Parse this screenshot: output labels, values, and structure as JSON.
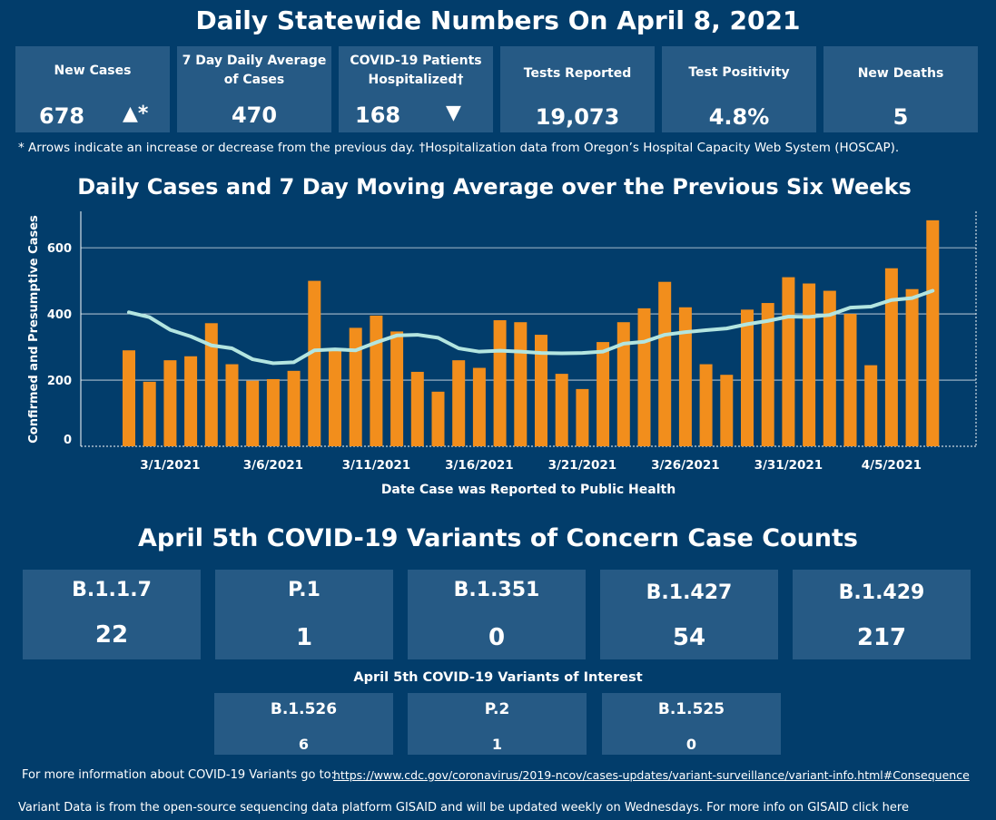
{
  "header": {
    "title": "Daily Statewide Numbers On April 8, 2021"
  },
  "kpis": [
    {
      "label_lines": [
        "New Cases"
      ],
      "value": "678",
      "indicator": "▲*"
    },
    {
      "label_lines": [
        "7 Day Daily Average",
        "of Cases"
      ],
      "value": "470",
      "indicator": ""
    },
    {
      "label_lines": [
        "COVID-19 Patients",
        "Hospitalized†"
      ],
      "value": "168",
      "indicator": "▼"
    },
    {
      "label_lines": [
        "Tests Reported"
      ],
      "value": "19,073",
      "indicator": ""
    },
    {
      "label_lines": [
        "Test Positivity"
      ],
      "value": "4.8%",
      "indicator": ""
    },
    {
      "label_lines": [
        "New Deaths"
      ],
      "value": "5",
      "indicator": ""
    }
  ],
  "footnote": "* Arrows indicate an increase or decrease from the previous day. †Hospitalization data from Oregon’s Hospital Capacity Web System (HOSCAP).",
  "chart_title": "Daily Cases and 7 Day Moving Average over the Previous Six Weeks",
  "chart_data": {
    "type": "bar",
    "title": "Daily Cases and 7 Day Moving Average over the Previous Six Weeks",
    "xlabel": "Date Case was Reported to Public Health",
    "ylabel": "Confirmed and Presumptive Cases",
    "ylim": [
      0,
      710
    ],
    "yticks": [
      0,
      200,
      400,
      600
    ],
    "grid": true,
    "x_tick_labels": [
      "3/1/2021",
      "3/6/2021",
      "3/11/2021",
      "3/16/2021",
      "3/21/2021",
      "3/26/2021",
      "3/31/2021",
      "4/5/2021"
    ],
    "x_tick_positions": [
      2,
      7,
      12,
      17,
      22,
      27,
      32,
      37
    ],
    "x": [
      "2/27/2021",
      "2/28/2021",
      "3/1/2021",
      "3/2/2021",
      "3/3/2021",
      "3/4/2021",
      "3/5/2021",
      "3/6/2021",
      "3/7/2021",
      "3/8/2021",
      "3/9/2021",
      "3/10/2021",
      "3/11/2021",
      "3/12/2021",
      "3/13/2021",
      "3/14/2021",
      "3/15/2021",
      "3/16/2021",
      "3/17/2021",
      "3/18/2021",
      "3/19/2021",
      "3/20/2021",
      "3/21/2021",
      "3/22/2021",
      "3/23/2021",
      "3/24/2021",
      "3/25/2021",
      "3/26/2021",
      "3/27/2021",
      "3/28/2021",
      "3/29/2021",
      "3/30/2021",
      "3/31/2021",
      "4/1/2021",
      "4/2/2021",
      "4/3/2021",
      "4/4/2021",
      "4/5/2021",
      "4/6/2021",
      "4/7/2021"
    ],
    "series": [
      {
        "kind": "bar",
        "color": "#f28e1c",
        "values": [
          290,
          195,
          260,
          272,
          372,
          248,
          198,
          203,
          228,
          500,
          297,
          358,
          395,
          347,
          225,
          165,
          260,
          237,
          381,
          375,
          337,
          219,
          173,
          315,
          375,
          417,
          497,
          420,
          248,
          216,
          413,
          433,
          511,
          492,
          470,
          400,
          245,
          538,
          475,
          683
        ]
      },
      {
        "kind": "line",
        "color": "#b3e5e0",
        "values": [
          405,
          390,
          352,
          332,
          305,
          296,
          263,
          251,
          254,
          290,
          293,
          290,
          314,
          335,
          337,
          328,
          296,
          286,
          289,
          286,
          282,
          281,
          282,
          286,
          310,
          316,
          337,
          345,
          351,
          356,
          369,
          379,
          392,
          391,
          397,
          419,
          422,
          442,
          448,
          470
        ]
      }
    ]
  },
  "variants_title": "April 5th  COVID-19 Variants of Concern Case Counts",
  "variants_concern": [
    {
      "name": "B.1.1.7",
      "count": "22"
    },
    {
      "name": "P.1",
      "count": "1"
    },
    {
      "name": "B.1.351",
      "count": "0"
    },
    {
      "name": "B.1.427",
      "count": "54"
    },
    {
      "name": "B.1.429",
      "count": "217"
    }
  ],
  "variants_interest_title": "April 5th COVID-19 Variants of Interest",
  "variants_interest": [
    {
      "name": "B.1.526",
      "count": "6"
    },
    {
      "name": "P.2",
      "count": "1"
    },
    {
      "name": "B.1.525",
      "count": "0"
    }
  ],
  "info": {
    "more_info_text": "For more information about COVID-19 Variants go to:",
    "cdc_link": "https://www.cdc.gov/coronavirus/2019-ncov/cases-updates/variant-surveillance/variant-info.html#Consequence",
    "gisaid_text": "Variant Data is from the open-source sequencing data platform GISAID and will be updated weekly on Wednesdays. For more info on GISAID click here"
  }
}
